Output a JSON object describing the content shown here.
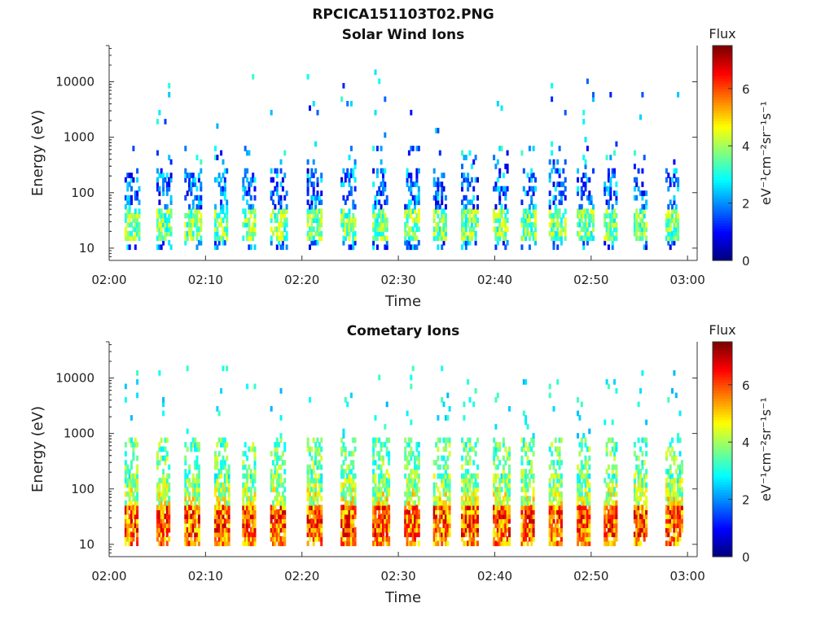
{
  "title": "RPCICA151103T02.PNG",
  "chart_data": [
    {
      "type": "heatmap",
      "title": "Solar Wind Ions",
      "xlabel": "Time",
      "ylabel": "Energy (eV)",
      "x_ticks": [
        "02:00",
        "02:10",
        "02:20",
        "02:30",
        "02:40",
        "02:50",
        "03:00"
      ],
      "x_range_minutes": [
        0,
        61
      ],
      "y_ticks": [
        "10",
        "100",
        "1000",
        "10000"
      ],
      "y_tick_values": [
        10,
        100,
        1000,
        10000
      ],
      "ylim": [
        6,
        45000
      ],
      "y_scale": "log",
      "colorbar": {
        "title": "Flux",
        "label": "eV⁻¹cm⁻²sr⁻¹s⁻¹",
        "range": [
          0,
          7.5
        ],
        "ticks": [
          "0",
          "2",
          "4",
          "6"
        ],
        "colormap": "jet"
      },
      "sweep_start_minutes": [
        1.6,
        4.9,
        7.8,
        10.9,
        13.8,
        16.7,
        20.5,
        24.0,
        27.3,
        30.6,
        33.6,
        36.5,
        39.8,
        42.7,
        45.6,
        48.5,
        51.3,
        54.4,
        57.7
      ],
      "peak_flux": 4.6
    },
    {
      "type": "heatmap",
      "title": "Cometary Ions",
      "xlabel": "Time",
      "ylabel": "Energy (eV)",
      "x_ticks": [
        "02:00",
        "02:10",
        "02:20",
        "02:30",
        "02:40",
        "02:50",
        "03:00"
      ],
      "x_range_minutes": [
        0,
        61
      ],
      "y_ticks": [
        "10",
        "100",
        "1000",
        "10000"
      ],
      "y_tick_values": [
        10,
        100,
        1000,
        10000
      ],
      "ylim": [
        6,
        45000
      ],
      "y_scale": "log",
      "colorbar": {
        "title": "Flux",
        "label": "eV⁻¹cm⁻²sr⁻¹s⁻¹",
        "range": [
          0,
          7.5
        ],
        "ticks": [
          "0",
          "2",
          "4",
          "6"
        ],
        "colormap": "jet"
      },
      "sweep_start_minutes": [
        1.6,
        4.9,
        7.8,
        10.9,
        13.8,
        16.7,
        20.5,
        24.0,
        27.3,
        30.6,
        33.6,
        36.5,
        39.8,
        42.7,
        45.6,
        48.5,
        51.3,
        54.4,
        57.7
      ],
      "peak_flux": 7.0
    }
  ]
}
